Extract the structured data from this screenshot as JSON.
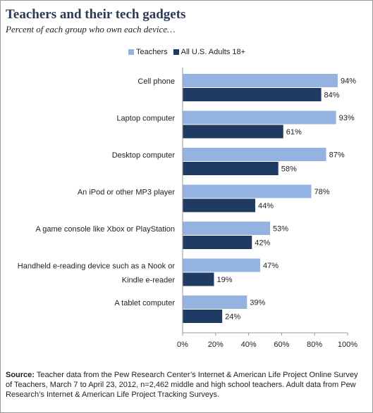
{
  "title": "Teachers and their tech gadgets",
  "subtitle": "Percent of each group who own each device…",
  "colors": {
    "teachers": "#95b3e0",
    "adults": "#1f3b63",
    "axis": "#999999"
  },
  "source": {
    "label": "Source:",
    "text": "Teacher data from the Pew Research Center’s Internet & American Life Project Online Survey of Teachers, March 7 to April 23, 2012, n=2,462 middle and high school teachers.  Adult data from Pew Research’s Internet & American Life Project Tracking Surveys."
  },
  "chart_data": {
    "type": "bar",
    "orientation": "horizontal",
    "categories": [
      [
        "Cell phone"
      ],
      [
        "Laptop computer"
      ],
      [
        "Desktop computer"
      ],
      [
        "An iPod or other MP3 player"
      ],
      [
        "A game console like Xbox or PlayStation"
      ],
      [
        "Handheld e-reading device such as a Nook or",
        "Kindle e-reader"
      ],
      [
        "A tablet computer"
      ]
    ],
    "series": [
      {
        "name": "Teachers",
        "values": [
          94,
          93,
          87,
          78,
          53,
          47,
          39
        ]
      },
      {
        "name": "All U.S. Adults 18+",
        "values": [
          84,
          61,
          58,
          44,
          42,
          19,
          24
        ]
      }
    ],
    "value_suffix": "%",
    "xlim": [
      0,
      100
    ],
    "xticks": [
      "0%",
      "20%",
      "40%",
      "60%",
      "80%",
      "100%"
    ],
    "grid": false,
    "legend_position": "top"
  }
}
